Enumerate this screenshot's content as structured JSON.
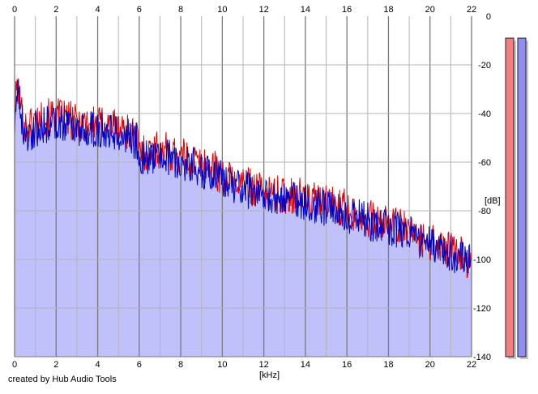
{
  "credit": "created by Hub Audio Tools",
  "colors": {
    "background": "#ffffff",
    "grid_minor": "#b4b4b4",
    "grid_major": "#7a7a7a",
    "spectrum_fill": "#c0c0fb",
    "left_channel": "#e00000",
    "right_channel": "#0000c8",
    "meter_left": "#f08080",
    "meter_right": "#8f8ff2"
  },
  "chart_data": {
    "type": "area",
    "title": "",
    "xlabel": "[kHz]",
    "ylabel": "[dB]",
    "xlim": [
      0,
      22
    ],
    "ylim": [
      -140,
      0
    ],
    "x_ticks": [
      "0",
      "2",
      "4",
      "6",
      "8",
      "10",
      "12",
      "14",
      "16",
      "18",
      "20",
      "22"
    ],
    "y_ticks": [
      "0",
      "-20",
      "-40",
      "-60",
      "-80",
      "-100",
      "-120",
      "-140"
    ],
    "grid": true,
    "series": [
      {
        "color_key": "left_channel",
        "x": [
          0,
          0.1,
          0.2,
          0.35,
          0.5,
          0.7,
          1,
          1.5,
          2,
          2.5,
          3,
          3.5,
          4,
          4.5,
          5,
          5.5,
          5.9,
          6,
          6.5,
          7,
          7.5,
          8,
          8.5,
          9,
          9.5,
          10,
          10.5,
          11,
          11.5,
          12,
          12.5,
          13,
          13.5,
          14,
          14.5,
          15,
          15.5,
          16,
          16.5,
          17,
          17.5,
          18,
          18.5,
          19,
          19.5,
          20,
          20.5,
          21,
          21.5,
          22
        ],
        "values": [
          -45,
          -28,
          -32,
          -40,
          -46,
          -45,
          -43,
          -42,
          -41,
          -42,
          -44,
          -43,
          -45,
          -44,
          -46,
          -47,
          -50,
          -56,
          -56,
          -55,
          -56,
          -58,
          -59,
          -61,
          -62,
          -66,
          -68,
          -69,
          -70,
          -72,
          -73,
          -74,
          -73,
          -75,
          -76,
          -77,
          -78,
          -79,
          -82,
          -83,
          -85,
          -86,
          -87,
          -88,
          -92,
          -93,
          -95,
          -97,
          -98,
          -101
        ]
      },
      {
        "color_key": "right_channel",
        "x": [
          0,
          0.1,
          0.2,
          0.35,
          0.5,
          0.7,
          1,
          1.5,
          2,
          2.5,
          3,
          3.5,
          4,
          4.5,
          5,
          5.5,
          5.9,
          6,
          6.5,
          7,
          7.5,
          8,
          8.5,
          9,
          9.5,
          10,
          10.5,
          11,
          11.5,
          12,
          12.5,
          13,
          13.5,
          14,
          14.5,
          15,
          15.5,
          16,
          16.5,
          17,
          17.5,
          18,
          18.5,
          19,
          19.5,
          20,
          20.5,
          21,
          21.5,
          22
        ],
        "values": [
          -46,
          -26,
          -31,
          -42,
          -50,
          -49,
          -46,
          -45,
          -43,
          -44,
          -46,
          -46,
          -47,
          -46,
          -48,
          -49,
          -52,
          -58,
          -58,
          -57,
          -58,
          -60,
          -61,
          -63,
          -64,
          -67,
          -70,
          -71,
          -72,
          -74,
          -75,
          -76,
          -75,
          -77,
          -78,
          -79,
          -80,
          -81,
          -83,
          -84,
          -86,
          -87,
          -88,
          -89,
          -93,
          -94,
          -96,
          -98,
          -99,
          -102
        ]
      }
    ],
    "meters": [
      {
        "color_key": "meter_left",
        "level_db": -140
      },
      {
        "color_key": "meter_right",
        "level_db": -140
      }
    ]
  }
}
